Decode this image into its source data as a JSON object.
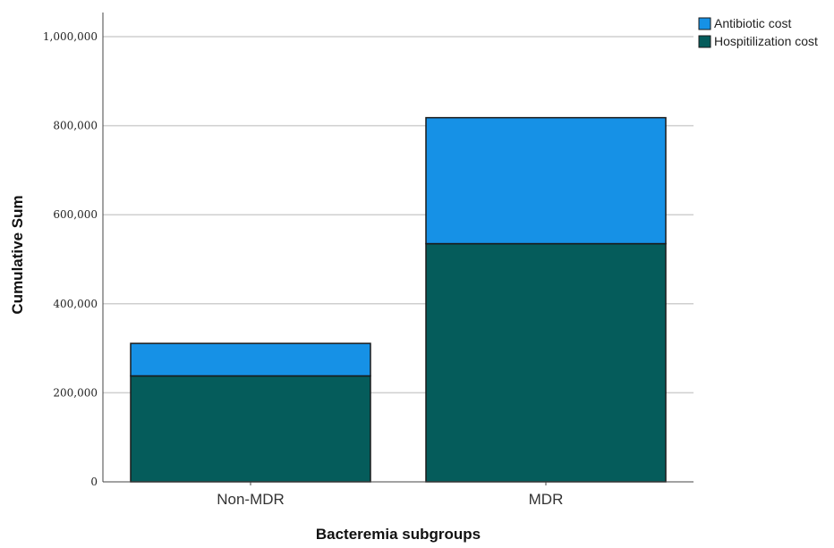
{
  "chart_data": {
    "type": "bar",
    "stacked": true,
    "title": "",
    "xlabel": "Bacteremia subgroups",
    "ylabel": "Cumulative Sum",
    "categories": [
      "Non-MDR",
      "MDR"
    ],
    "series": [
      {
        "name": "Hospitilization cost",
        "values": [
          238000,
          535000
        ],
        "color": "#055c5b"
      },
      {
        "name": "Antibiotic cost",
        "values": [
          73000,
          283000
        ],
        "color": "#1691e6"
      }
    ],
    "ylim": [
      0,
      1000000
    ],
    "yticks": [
      0,
      200000,
      400000,
      600000,
      800000,
      1000000
    ],
    "ytick_labels": [
      "0",
      "200,000",
      "400,000",
      "600,000",
      "800,000",
      "1,000,000"
    ],
    "legend": {
      "placement": "top-right",
      "entries": [
        "Antibiotic cost",
        "Hospitilization cost"
      ]
    },
    "grid": "horizontal"
  }
}
